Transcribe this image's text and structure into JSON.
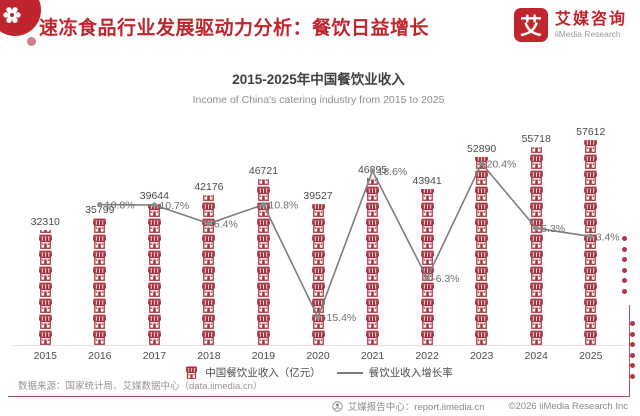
{
  "header": {
    "title": "速冻食品行业发展驱动力分析：餐饮日益增长",
    "logo_char": "艾",
    "logo_name": "艾媒咨询",
    "logo_sub": "iiMedia Research"
  },
  "chart": {
    "title": "2015-2025年中国餐饮业收入",
    "subtitle": "Income of China's catering industry from 2015 to 2025"
  },
  "chart_data": {
    "type": "bar",
    "note": "pictograph bars (storefront icons) with overlaid growth-rate line",
    "categories": [
      "2015",
      "2016",
      "2017",
      "2018",
      "2019",
      "2020",
      "2021",
      "2022",
      "2023",
      "2024",
      "2025"
    ],
    "series": [
      {
        "name": "中国餐饮业收入（亿元）",
        "type": "bar",
        "values": [
          32310,
          35799,
          39644,
          42176,
          46721,
          39527,
          46895,
          43941,
          52890,
          55718,
          57612
        ]
      },
      {
        "name": "餐饮业收入增长率",
        "type": "line",
        "unit": "%",
        "values": [
          null,
          10.8,
          10.7,
          6.4,
          10.8,
          -15.4,
          18.6,
          -6.3,
          20.4,
          5.3,
          3.4
        ]
      }
    ],
    "title": "2015-2025年中国餐饮业收入",
    "subtitle": "Income of China's catering industry from 2015 to 2025",
    "xlabel": "",
    "ylabel": "",
    "grid": false,
    "legend_position": "bottom"
  },
  "legend": {
    "bar_label": "中国餐饮业收入（亿元）",
    "line_label": "餐饮业收入增长率"
  },
  "footer": {
    "source": "数据来源：国家统计局、艾媒数据中心（data.iimedia.cn）",
    "report_center": "艾媒报告中心：report.iimedia.cn",
    "copyright": "©2026  iiMedia Research  Inc"
  },
  "icons": {
    "bar_icon": "storefront",
    "header_icon": "gear-flower",
    "footer_icon": "circled-logo"
  },
  "colors": {
    "accent_red": "#c0242c",
    "store_icon": "#a8333f",
    "line_gray": "#7d7d7d",
    "deco_dot": "#b23542"
  }
}
